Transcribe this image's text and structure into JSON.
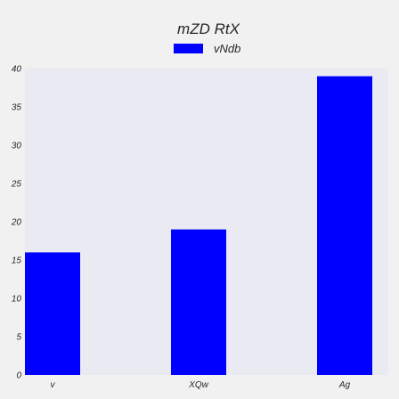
{
  "chart_data": {
    "type": "bar",
    "title": "mZD RtX",
    "categories": [
      "v",
      "XQw",
      "Ag"
    ],
    "series": [
      {
        "name": "vNdb",
        "values": [
          16,
          19,
          39
        ],
        "color": "#0000ff"
      }
    ],
    "ylim": [
      0,
      40
    ],
    "yticks": [
      0,
      5,
      10,
      15,
      20,
      25,
      30,
      35,
      40
    ],
    "xlabel": "",
    "ylabel": "",
    "grid": false,
    "legend_position": "top-center",
    "plot_background": "#eaeaf2"
  }
}
